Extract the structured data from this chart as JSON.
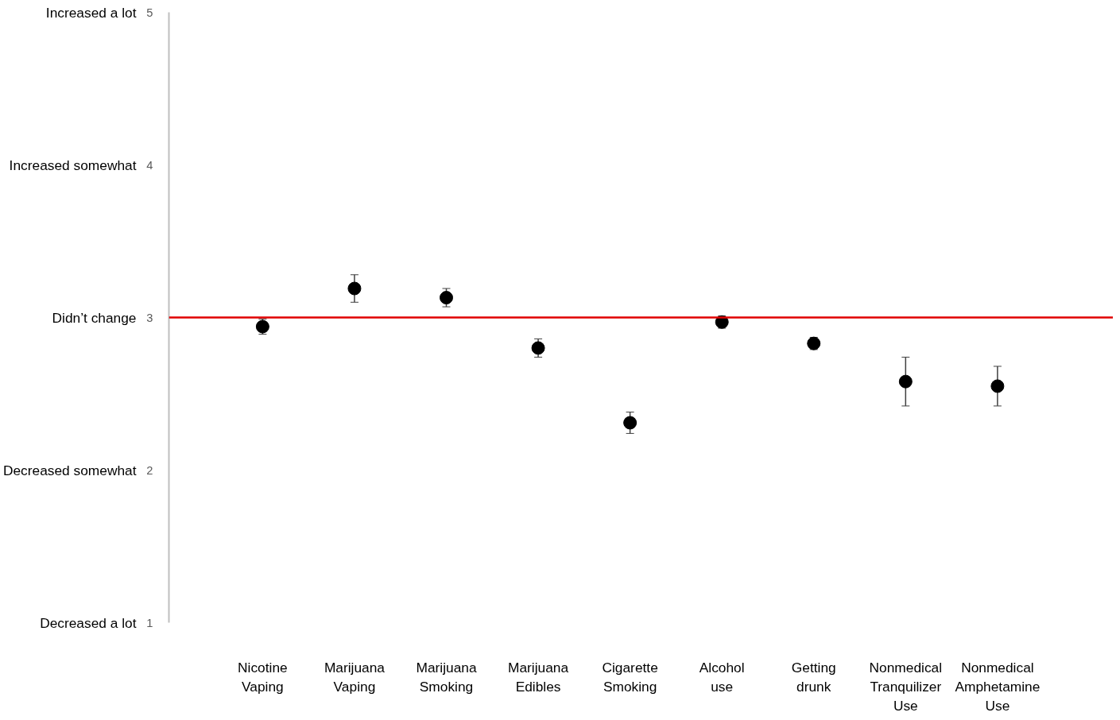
{
  "chart_data": {
    "type": "scatter",
    "categories": [
      "Nicotine\nVaping",
      "Marijuana\nVaping",
      "Marijuana\nSmoking",
      "Marijuana\nEdibles",
      "Cigarette\nSmoking",
      "Alcohol\nuse",
      "Getting\ndrunk",
      "Nonmedical\nTranquilizer\nUse",
      "Nonmedical\nAmphetamine\nUse"
    ],
    "values": [
      2.94,
      3.19,
      3.13,
      2.8,
      2.31,
      2.97,
      2.83,
      2.58,
      2.55
    ],
    "errors": [
      0.05,
      0.09,
      0.06,
      0.06,
      0.07,
      0.04,
      0.04,
      0.16,
      0.13
    ],
    "color": "#000000",
    "marker": "circle",
    "ylim": [
      1,
      5
    ],
    "yticks": [
      1,
      2,
      3,
      4,
      5
    ],
    "annotations": [
      "Decreased a lot",
      "Decreased somewhat",
      "Didn’t change",
      "Increased somewhat",
      "Increased a lot"
    ],
    "ref_lines": [
      {
        "axis": "y",
        "value": 3,
        "color": "#e00000"
      }
    ],
    "grid": false
  }
}
